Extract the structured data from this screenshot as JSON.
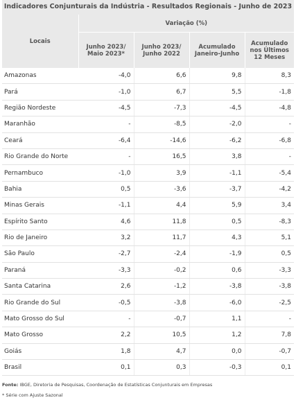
{
  "title": "Indicadores Conjunturais da Indústria  -  Resultados Regionais  -  Junho de 2023",
  "header": {
    "locais": "Locais",
    "variacao": "Variação (%)",
    "columns": [
      [
        "Junho 2023/",
        "Maio 2023*"
      ],
      [
        "Junho 2023/",
        "Junho 2022"
      ],
      [
        "Acumulado",
        "Janeiro-Junho"
      ],
      [
        "Acumulado",
        "nos Últimos",
        "12 Meses"
      ]
    ]
  },
  "rows": [
    {
      "local": "Amazonas",
      "values": [
        "-4,0",
        "6,6",
        "9,8",
        "8,3"
      ]
    },
    {
      "local": "Pará",
      "values": [
        "-1,0",
        "6,7",
        "5,5",
        "-1,8"
      ]
    },
    {
      "local": "Região Nordeste",
      "values": [
        "-4,5",
        "-7,3",
        "-4,5",
        "-4,8"
      ]
    },
    {
      "local": "Maranhão",
      "values": [
        "-",
        "-8,5",
        "-2,0",
        "-"
      ]
    },
    {
      "local": "Ceará",
      "values": [
        "-6,4",
        "-14,6",
        "-6,2",
        "-6,8"
      ]
    },
    {
      "local": "Rio Grande do Norte",
      "values": [
        "-",
        "16,5",
        "3,8",
        "-"
      ]
    },
    {
      "local": "Pernambuco",
      "values": [
        "-1,0",
        "3,9",
        "-1,1",
        "-5,4"
      ]
    },
    {
      "local": "Bahia",
      "values": [
        "0,5",
        "-3,6",
        "-3,7",
        "-4,2"
      ]
    },
    {
      "local": "Minas Gerais",
      "values": [
        "-1,1",
        "4,4",
        "5,9",
        "3,4"
      ]
    },
    {
      "local": "Espírito Santo",
      "values": [
        "4,6",
        "11,8",
        "0,5",
        "-8,3"
      ]
    },
    {
      "local": "Rio de Janeiro",
      "values": [
        "3,2",
        "11,7",
        "4,3",
        "5,1"
      ]
    },
    {
      "local": "São Paulo",
      "values": [
        "-2,7",
        "-2,4",
        "-1,9",
        "0,5"
      ]
    },
    {
      "local": "Paraná",
      "values": [
        "-3,3",
        "-0,2",
        "0,6",
        "-3,3"
      ]
    },
    {
      "local": "Santa Catarina",
      "values": [
        "2,6",
        "-1,2",
        "-3,8",
        "-3,8"
      ]
    },
    {
      "local": "Rio Grande do Sul",
      "values": [
        "-0,5",
        "-3,8",
        "-6,0",
        "-2,5"
      ]
    },
    {
      "local": "Mato Grosso do Sul",
      "values": [
        "-",
        "-0,7",
        "1,1",
        "-"
      ]
    },
    {
      "local": "Mato Grosso",
      "values": [
        "2,2",
        "10,5",
        "1,2",
        "7,8"
      ]
    },
    {
      "local": "Goiás",
      "values": [
        "1,8",
        "4,7",
        "0,0",
        "-0,7"
      ]
    },
    {
      "local": "Brasil",
      "values": [
        "0,1",
        "0,3",
        "-0,3",
        "0,1"
      ]
    }
  ],
  "footer": {
    "source_label": "Fonte:",
    "source_text": " IBGE, Diretoria de Pesquisas, Coordenação de Estatísticas Conjunturais em Empresas",
    "note": "* Série com Ajuste Sazonal"
  }
}
